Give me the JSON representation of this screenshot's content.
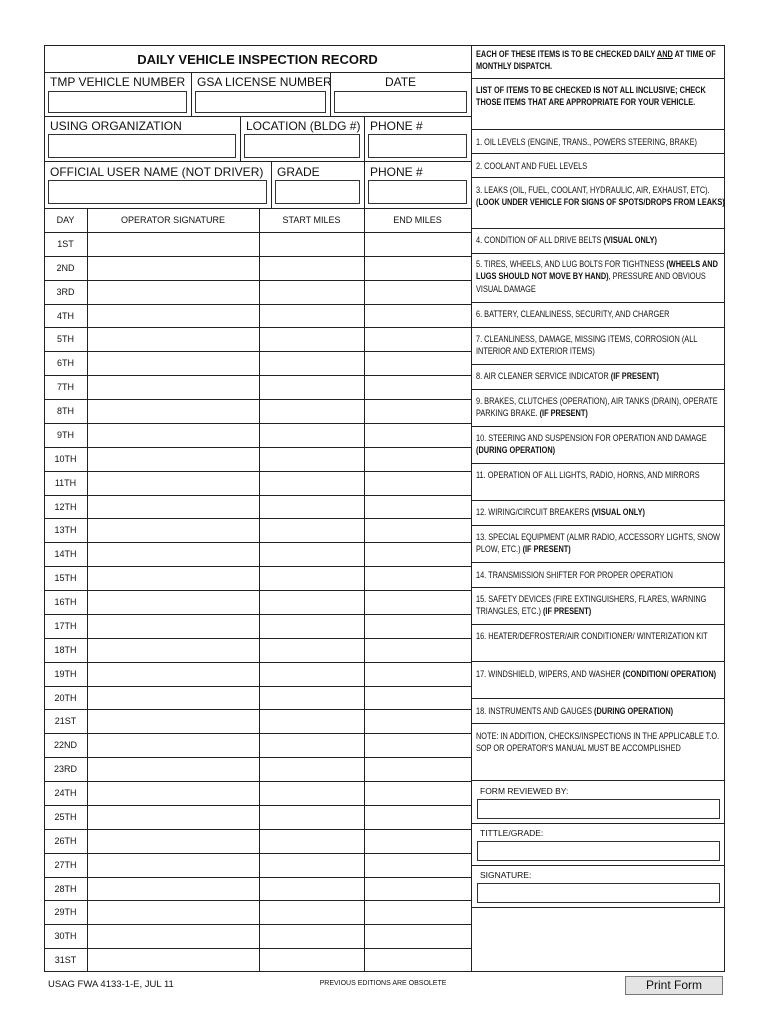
{
  "form": {
    "title": "DAILY VEHICLE INSPECTION RECORD",
    "fields": [
      [
        "TMP VEHICLE NUMBER",
        "GSA LICENSE NUMBER",
        "DATE"
      ],
      [
        "USING ORGANIZATION",
        "LOCATION (BLDG #)",
        "PHONE #"
      ],
      [
        "OFFICIAL USER NAME (NOT DRIVER)",
        "GRADE",
        "PHONE #"
      ]
    ],
    "table": {
      "columns": [
        "DAY",
        "OPERATOR SIGNATURE",
        "START MILES",
        "END MILES"
      ],
      "days": [
        "1ST",
        "2ND",
        "3RD",
        "4TH",
        "5TH",
        "6TH",
        "7TH",
        "8TH",
        "9TH",
        "10TH",
        "11TH",
        "12TH",
        "13TH",
        "14TH",
        "15TH",
        "16TH",
        "17TH",
        "18TH",
        "19TH",
        "20TH",
        "21ST",
        "22ND",
        "23RD",
        "24TH",
        "25TH",
        "26TH",
        "27TH",
        "28TH",
        "29TH",
        "30TH",
        "31ST"
      ]
    },
    "instructions": [
      [
        {
          "text": "EACH OF THESE ITEMS IS TO BE CHECKED DAILY ",
          "bold": true
        },
        {
          "text": "AND",
          "bold": true,
          "underline": true
        },
        {
          "text": " AT TIME OF MONTHLY DISPATCH.",
          "bold": true
        }
      ],
      [
        {
          "text": "LIST OF ITEMS TO BE CHECKED IS NOT ALL INCLUSIVE; CHECK THOSE ITEMS THAT ARE APPROPRIATE FOR YOUR VEHICLE.",
          "bold": true
        }
      ],
      [
        {
          "text": "1.  OIL LEVELS (ENGINE, TRANS., POWERS STEERING, BRAKE)"
        }
      ],
      [
        {
          "text": "2.  COOLANT AND FUEL LEVELS"
        }
      ],
      [
        {
          "text": "3.  LEAKS (OIL, FUEL, COOLANT, HYDRAULIC, AIR, EXHAUST, ETC).  "
        },
        {
          "text": "(LOOK UNDER VEHICLE FOR SIGNS OF SPOTS/DROPS FROM LEAKS)",
          "bold": true
        }
      ],
      [
        {
          "text": "4.  CONDITION OF ALL DRIVE BELTS "
        },
        {
          "text": "(VISUAL ONLY)",
          "bold": true
        }
      ],
      [
        {
          "text": "5.  TIRES, WHEELS, AND LUG BOLTS FOR TIGHTNESS "
        },
        {
          "text": "(WHEELS AND LUGS SHOULD NOT MOVE BY HAND)",
          "bold": true
        },
        {
          "text": ", PRESSURE AND OBVIOUS VISUAL DAMAGE"
        }
      ],
      [
        {
          "text": "6.  BATTERY, CLEANLINESS, SECURITY, AND CHARGER"
        }
      ],
      [
        {
          "text": "7.  CLEANLINESS, DAMAGE, MISSING ITEMS, CORROSION (ALL INTERIOR AND EXTERIOR ITEMS)"
        }
      ],
      [
        {
          "text": "8.  AIR CLEANER SERVICE INDICATOR "
        },
        {
          "text": "(IF PRESENT)",
          "bold": true
        }
      ],
      [
        {
          "text": "9.  BRAKES, CLUTCHES (OPERATION), AIR TANKS (DRAIN), OPERATE PARKING BRAKE.  "
        },
        {
          "text": "(IF PRESENT)",
          "bold": true
        }
      ],
      [
        {
          "text": "10.  STEERING AND SUSPENSION FOR OPERATION AND DAMAGE "
        },
        {
          "text": "(DURING OPERATION)",
          "bold": true
        }
      ],
      [
        {
          "text": "11.  OPERATION OF ALL LIGHTS, RADIO, HORNS, AND MIRRORS"
        }
      ],
      [
        {
          "text": "12.  WIRING/CIRCUIT BREAKERS "
        },
        {
          "text": "(VISUAL ONLY)",
          "bold": true
        }
      ],
      [
        {
          "text": "13.  SPECIAL EQUIPMENT (ALMR RADIO, ACCESSORY LIGHTS, SNOW PLOW, ETC.) "
        },
        {
          "text": "(IF PRESENT)",
          "bold": true
        }
      ],
      [
        {
          "text": "14.  TRANSMISSION SHIFTER FOR PROPER OPERATION"
        }
      ],
      [
        {
          "text": "15.  SAFETY DEVICES (FIRE EXTINGUISHERS, FLARES, WARNING TRIANGLES, ETC.) "
        },
        {
          "text": "(IF PRESENT)",
          "bold": true
        }
      ],
      [
        {
          "text": "16.  HEATER/DEFROSTER/AIR CONDITIONER/ WINTERIZATION KIT"
        }
      ],
      [
        {
          "text": "17.  WINDSHIELD, WIPERS, AND WASHER "
        },
        {
          "text": "(CONDITION/ OPERATION)",
          "bold": true
        }
      ],
      [
        {
          "text": "18.  INSTRUMENTS AND GAUGES "
        },
        {
          "text": "(DURING OPERATION)",
          "bold": true
        }
      ],
      [
        {
          "text": "NOTE:  IN ADDITION, CHECKS/INSPECTIONS IN THE APPLICABLE T.O. SOP OR OPERATOR'S MANUAL MUST BE ACCOMPLISHED"
        }
      ]
    ],
    "signoff": [
      "FORM REVIEWED BY:",
      "TITTLE/GRADE:",
      "SIGNATURE:"
    ],
    "footer": {
      "form_number": "USAG FWA 4133-1-E, JUL 11",
      "notice": "PREVIOUS EDITIONS ARE OBSOLETE",
      "print_button": "Print Form"
    }
  }
}
